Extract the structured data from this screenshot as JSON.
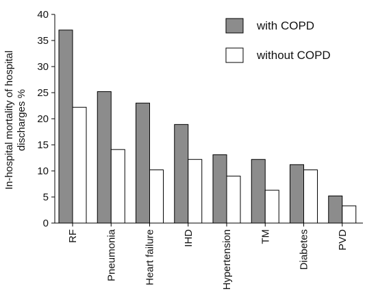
{
  "chart_data": {
    "type": "bar",
    "categories": [
      "RF",
      "Pneumonia",
      "Heart failure",
      "IHD",
      "Hypertension",
      "TM",
      "Diabetes",
      "PVD"
    ],
    "series": [
      {
        "name": "with COPD",
        "values": [
          37,
          25.2,
          23,
          18.9,
          13.1,
          12.2,
          11.2,
          5.2
        ],
        "color": "#8c8c8c"
      },
      {
        "name": "without COPD",
        "values": [
          22.2,
          14.1,
          10.2,
          12.2,
          9,
          6.3,
          10.2,
          3.3
        ],
        "color": "#ffffff"
      }
    ],
    "ylabel_line1": "In-hospital mortality of hospital",
    "ylabel_line2": "discharges %",
    "ylim": [
      0,
      40
    ],
    "yticks": [
      "0",
      "5",
      "10",
      "15",
      "20",
      "25",
      "30",
      "35",
      "40"
    ],
    "legend_position": "top-right",
    "grid": false
  }
}
